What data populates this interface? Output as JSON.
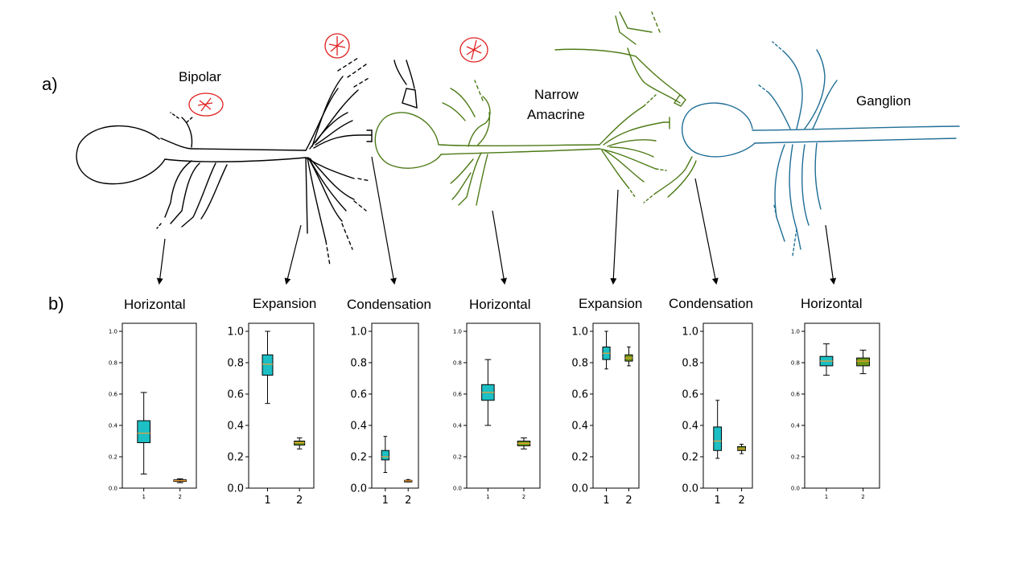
{
  "panels": {
    "a_label": "a)",
    "b_label": "b)"
  },
  "cells": [
    {
      "name": "bipolar",
      "label_lines": [
        "Bipolar"
      ],
      "color": "#000000"
    },
    {
      "name": "narrow-amacrine",
      "label_lines": [
        "Narrow",
        "Amacrine"
      ],
      "color": "#4d7a16"
    },
    {
      "name": "ganglion",
      "label_lines": [
        "Ganglion"
      ],
      "color": "#1f6e96"
    }
  ],
  "colors": {
    "box_series_1": "#1bbfc4",
    "box_series_2": "#6d9a1a",
    "median_line": "#f0a030",
    "alt_box_series_2": "#b77a30"
  },
  "chart_data": [
    {
      "type": "box",
      "title": "Horizontal",
      "categories": [
        "1",
        "2"
      ],
      "ylim": [
        0,
        1.0
      ],
      "yticks": [
        "0.0",
        "0.2",
        "0.4",
        "0.6",
        "0.8",
        "1.0"
      ],
      "series": [
        {
          "whisker_low": 0.09,
          "q1": 0.29,
          "median": 0.35,
          "q3": 0.43,
          "whisker_high": 0.61
        },
        {
          "whisker_low": 0.035,
          "q1": 0.043,
          "median": 0.048,
          "q3": 0.053,
          "whisker_high": 0.06
        }
      ]
    },
    {
      "type": "box",
      "title": "Expansion",
      "categories": [
        "1",
        "2"
      ],
      "ylim": [
        0,
        1.0
      ],
      "yticks": [
        "0.0",
        "0.2",
        "0.4",
        "0.6",
        "0.8",
        "1.0"
      ],
      "series": [
        {
          "whisker_low": 0.54,
          "q1": 0.72,
          "median": 0.79,
          "q3": 0.85,
          "whisker_high": 1.0
        },
        {
          "whisker_low": 0.25,
          "q1": 0.275,
          "median": 0.29,
          "q3": 0.3,
          "whisker_high": 0.32
        }
      ]
    },
    {
      "type": "box",
      "title": "Condensation",
      "categories": [
        "1",
        "2"
      ],
      "ylim": [
        0,
        1.0
      ],
      "yticks": [
        "0.0",
        "0.2",
        "0.4",
        "0.6",
        "0.8",
        "1.0"
      ],
      "series": [
        {
          "whisker_low": 0.1,
          "q1": 0.18,
          "median": 0.2,
          "q3": 0.24,
          "whisker_high": 0.33
        },
        {
          "whisker_low": 0.04,
          "q1": 0.044,
          "median": 0.047,
          "q3": 0.05,
          "whisker_high": 0.055
        }
      ]
    },
    {
      "type": "box",
      "title": "Horizontal",
      "categories": [
        "1",
        "2"
      ],
      "ylim": [
        0,
        1.0
      ],
      "yticks": [
        "0.0",
        "0.2",
        "0.4",
        "0.6",
        "0.8",
        "1.0"
      ],
      "series": [
        {
          "whisker_low": 0.4,
          "q1": 0.56,
          "median": 0.61,
          "q3": 0.66,
          "whisker_high": 0.82
        },
        {
          "whisker_low": 0.25,
          "q1": 0.27,
          "median": 0.285,
          "q3": 0.3,
          "whisker_high": 0.32
        }
      ]
    },
    {
      "type": "box",
      "title": "Expansion",
      "categories": [
        "1",
        "2"
      ],
      "ylim": [
        0,
        1.0
      ],
      "yticks": [
        "0.0",
        "0.2",
        "0.4",
        "0.6",
        "0.8",
        "1.0"
      ],
      "series": [
        {
          "whisker_low": 0.76,
          "q1": 0.82,
          "median": 0.86,
          "q3": 0.9,
          "whisker_high": 1.0
        },
        {
          "whisker_low": 0.78,
          "q1": 0.81,
          "median": 0.83,
          "q3": 0.85,
          "whisker_high": 0.9
        }
      ]
    },
    {
      "type": "box",
      "title": "Condensation",
      "categories": [
        "1",
        "2"
      ],
      "ylim": [
        0,
        1.0
      ],
      "yticks": [
        "0.0",
        "0.2",
        "0.4",
        "0.6",
        "0.8",
        "1.0"
      ],
      "series": [
        {
          "whisker_low": 0.19,
          "q1": 0.24,
          "median": 0.3,
          "q3": 0.39,
          "whisker_high": 0.56
        },
        {
          "whisker_low": 0.22,
          "q1": 0.24,
          "median": 0.25,
          "q3": 0.265,
          "whisker_high": 0.28
        }
      ]
    },
    {
      "type": "box",
      "title": "Horizontal",
      "categories": [
        "1",
        "2"
      ],
      "ylim": [
        0,
        1.0
      ],
      "yticks": [
        "0.0",
        "0.2",
        "0.4",
        "0.6",
        "0.8",
        "1.0"
      ],
      "series": [
        {
          "whisker_low": 0.72,
          "q1": 0.78,
          "median": 0.81,
          "q3": 0.84,
          "whisker_high": 0.92
        },
        {
          "whisker_low": 0.73,
          "q1": 0.78,
          "median": 0.81,
          "q3": 0.83,
          "whisker_high": 0.88
        }
      ]
    }
  ]
}
